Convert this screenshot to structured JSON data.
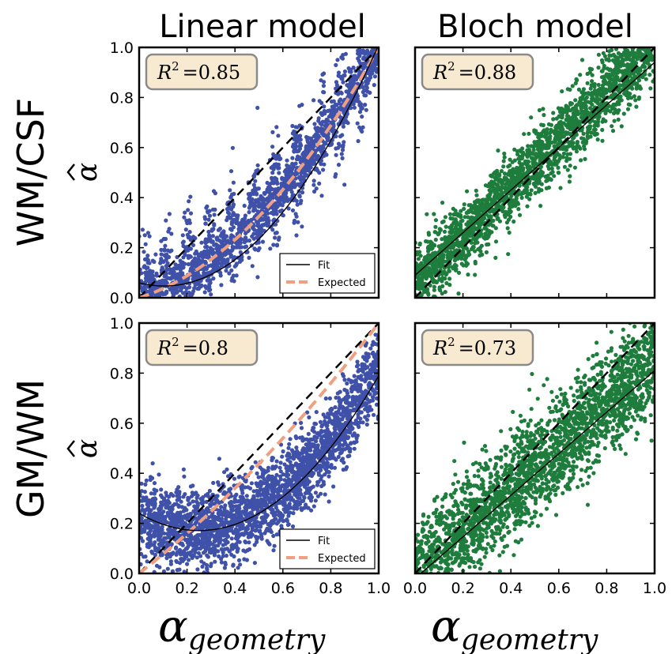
{
  "column_titles": [
    "Linear model",
    "Bloch model"
  ],
  "row_titles": [
    "WM/CSF",
    "GM/WM"
  ],
  "ylabel_symbol": "α",
  "xlabel": {
    "main": "α",
    "sub": "geometry"
  },
  "ticks": [
    "0.0",
    "0.2",
    "0.4",
    "0.6",
    "0.8",
    "1.0"
  ],
  "legend": {
    "fit": "Fit",
    "expected": "Expected"
  },
  "colors": {
    "blue": "#3f51a8",
    "green": "#1e7d3c",
    "expected": "#f0a080",
    "r2_box_fill": "#f7ead0",
    "r2_box_stroke": "#8a8a8a"
  },
  "chart_data": [
    {
      "type": "scatter",
      "row": 0,
      "col": 0,
      "color": "blue",
      "r2_label": "=0.85",
      "show_legend": true,
      "xlim": [
        0,
        1
      ],
      "ylim": [
        0,
        1
      ],
      "identity_line": {
        "style": "black-dashed",
        "from": [
          0,
          0
        ],
        "to": [
          1,
          1
        ]
      },
      "fit": {
        "kind": "quadratic",
        "coef": [
          0.06,
          -0.25,
          1.2
        ],
        "clip_y": [
          0,
          1
        ]
      },
      "expected": {
        "kind": "quadratic",
        "coef": [
          0.0,
          0.3,
          0.7
        ]
      },
      "scatter_model": {
        "kind": "banded",
        "center_coef": [
          0.0,
          0.3,
          0.7
        ],
        "spread": 0.07,
        "n": 2200,
        "seed": 11
      }
    },
    {
      "type": "scatter",
      "row": 0,
      "col": 1,
      "color": "green",
      "r2_label": "=0.88",
      "show_legend": false,
      "xlim": [
        0,
        1
      ],
      "ylim": [
        0,
        1
      ],
      "identity_line": {
        "style": "black-dashed",
        "from": [
          0,
          0
        ],
        "to": [
          1,
          1
        ]
      },
      "fit": {
        "kind": "linear",
        "coef": [
          0.09,
          0.85
        ]
      },
      "scatter_model": {
        "kind": "linear",
        "center_coef": [
          0.06,
          0.95
        ],
        "spread": 0.07,
        "n": 2200,
        "seed": 23
      }
    },
    {
      "type": "scatter",
      "row": 1,
      "col": 0,
      "color": "blue",
      "r2_label": "=0.8",
      "show_legend": true,
      "xlim": [
        0,
        1
      ],
      "ylim": [
        0,
        1
      ],
      "identity_line": {
        "style": "black-dashed",
        "from": [
          0,
          0
        ],
        "to": [
          1,
          1
        ]
      },
      "fit": {
        "kind": "quadratic",
        "coef": [
          0.24,
          -0.55,
          1.1
        ]
      },
      "expected": {
        "kind": "quadratic",
        "coef": [
          0.0,
          0.75,
          0.25
        ]
      },
      "scatter_model": {
        "kind": "quadratic",
        "center_coef": [
          0.22,
          -0.45,
          1.05
        ],
        "spread": 0.08,
        "n": 2400,
        "seed": 37
      }
    },
    {
      "type": "scatter",
      "row": 1,
      "col": 1,
      "color": "green",
      "r2_label": "=0.73",
      "show_legend": false,
      "xlim": [
        0,
        1
      ],
      "ylim": [
        0,
        1
      ],
      "identity_line": {
        "style": "black-dashed",
        "from": [
          0,
          0
        ],
        "to": [
          1,
          1
        ]
      },
      "fit": {
        "kind": "linear",
        "coef": [
          -0.02,
          0.83
        ]
      },
      "scatter_model": {
        "kind": "linear",
        "center_coef": [
          0.0,
          0.85
        ],
        "spread": 0.1,
        "n": 2400,
        "seed": 51
      }
    }
  ]
}
